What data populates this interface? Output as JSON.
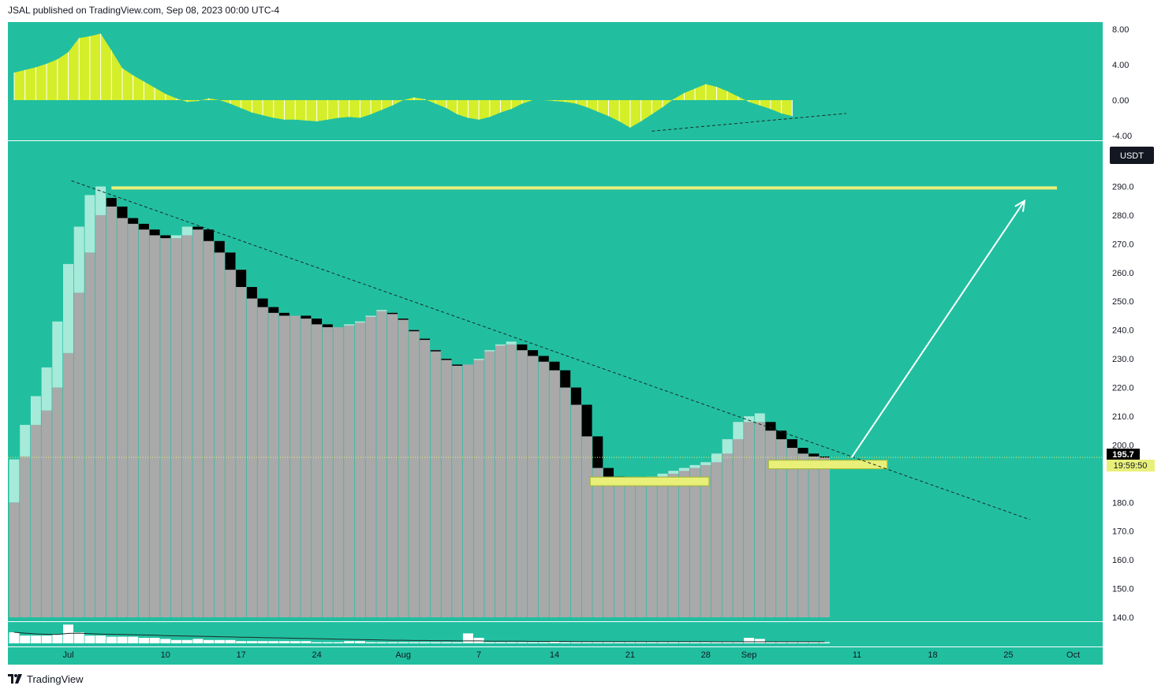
{
  "header": {
    "publisher_line": "JSAL published on TradingView.com, Sep 08, 2023 00:00 UTC-4"
  },
  "footer": {
    "brand": "TradingView",
    "logo_icon": "tradingview-logo-icon"
  },
  "colors": {
    "background": "#21bfa0",
    "bar_gray": "#a9a9a9",
    "bar_up_light": "#a6ead9",
    "bar_down_black": "#000000",
    "macd_fill": "#d4ee2a",
    "zone_fill": "#e9f07a",
    "line_white": "#ffffff",
    "dash": "#1d2a26"
  },
  "price_badge": {
    "value": "195.7",
    "countdown": "19:59:50"
  },
  "currency_label": "USDT",
  "chart_data": [
    {
      "type": "area",
      "panel": "macd",
      "yticks": [
        "8.00",
        "4.00",
        "0.00",
        "-4.00"
      ],
      "ytick_values": [
        8,
        4,
        0,
        -4
      ],
      "ylim": [
        -4.2,
        9.5
      ],
      "series": [
        {
          "values": [
            3.1,
            3.4,
            3.7,
            4.1,
            4.6,
            5.4,
            7.0,
            7.2,
            7.5,
            5.6,
            3.6,
            2.8,
            2.1,
            1.4,
            0.7,
            0.2,
            -0.2,
            -0.1,
            0.2,
            0.0,
            -0.4,
            -0.9,
            -1.4,
            -1.7,
            -2.0,
            -2.2,
            -2.2,
            -2.3,
            -2.4,
            -2.2,
            -2.0,
            -1.9,
            -2.0,
            -1.6,
            -1.1,
            -0.6,
            0.0,
            0.3,
            0.1,
            -0.4,
            -0.9,
            -1.6,
            -2.0,
            -2.2,
            -1.9,
            -1.4,
            -1.0,
            -0.4,
            0.0,
            0.0,
            -0.1,
            -0.2,
            -0.4,
            -0.8,
            -1.3,
            -1.8,
            -2.4,
            -3.1,
            -2.4,
            -1.6,
            -0.8,
            0.1,
            0.8,
            1.3,
            1.8,
            1.5,
            1.0,
            0.4,
            -0.2,
            -0.6,
            -1.0,
            -1.5,
            -1.8
          ]
        }
      ],
      "trendline": {
        "from": {
          "bar": 59,
          "value": -3.5
        },
        "to": {
          "bar": 77,
          "value": -1.5
        }
      }
    },
    {
      "type": "bar",
      "panel": "price",
      "x_ticks": [
        {
          "label": "Jul",
          "bar": 5
        },
        {
          "label": "10",
          "bar": 14
        },
        {
          "label": "17",
          "bar": 21
        },
        {
          "label": "24",
          "bar": 28
        },
        {
          "label": "Aug",
          "bar": 36
        },
        {
          "label": "7",
          "bar": 43
        },
        {
          "label": "14",
          "bar": 50
        },
        {
          "label": "21",
          "bar": 57
        },
        {
          "label": "28",
          "bar": 64
        },
        {
          "label": "Sep",
          "bar": 68
        },
        {
          "label": "11",
          "bar": 78
        },
        {
          "label": "18",
          "bar": 85
        },
        {
          "label": "25",
          "bar": 92
        },
        {
          "label": "Oct",
          "bar": 98
        }
      ],
      "yticks": [
        "290.0",
        "280.0",
        "270.0",
        "260.0",
        "250.0",
        "240.0",
        "230.0",
        "220.0",
        "210.0",
        "200.0",
        "180.0",
        "170.0",
        "160.0",
        "150.0",
        "140.0"
      ],
      "ytick_values": [
        290,
        280,
        270,
        260,
        250,
        240,
        230,
        220,
        210,
        200,
        180,
        170,
        160,
        150,
        140
      ],
      "ylim": [
        139,
        302
      ],
      "baseline": 140,
      "values": [
        180,
        196,
        207,
        212,
        220,
        232,
        253,
        267,
        280,
        286,
        283,
        279,
        277,
        275,
        273,
        272,
        273,
        276,
        275,
        271,
        267,
        261,
        255,
        251,
        248,
        246,
        245,
        245,
        244,
        242,
        241,
        242,
        243,
        245,
        247,
        246,
        244,
        240,
        237,
        233,
        230,
        228,
        228,
        230,
        233,
        235,
        235,
        233,
        231,
        229,
        226,
        220,
        214,
        203,
        192,
        189,
        187,
        186,
        187,
        189,
        190,
        191,
        192,
        193,
        194,
        197,
        202,
        208,
        210,
        208,
        205,
        202,
        199,
        197,
        196,
        195.7
      ],
      "marks": [
        {
          "bar": 0,
          "dir": "up",
          "other": 195
        },
        {
          "bar": 1,
          "dir": "up",
          "other": 207
        },
        {
          "bar": 2,
          "dir": "up",
          "other": 217
        },
        {
          "bar": 3,
          "dir": "up",
          "other": 227
        },
        {
          "bar": 4,
          "dir": "up",
          "other": 243
        },
        {
          "bar": 5,
          "dir": "up",
          "other": 263
        },
        {
          "bar": 6,
          "dir": "up",
          "other": 276
        },
        {
          "bar": 7,
          "dir": "up",
          "other": 287
        },
        {
          "bar": 8,
          "dir": "up",
          "other": 290
        },
        {
          "bar": 9,
          "dir": "down",
          "other": 283
        },
        {
          "bar": 10,
          "dir": "down",
          "other": 279
        },
        {
          "bar": 11,
          "dir": "down",
          "other": 277
        },
        {
          "bar": 12,
          "dir": "down",
          "other": 275
        },
        {
          "bar": 13,
          "dir": "down",
          "other": 273
        },
        {
          "bar": 14,
          "dir": "down",
          "other": 272
        },
        {
          "bar": 15,
          "dir": "up",
          "other": 273
        },
        {
          "bar": 16,
          "dir": "up",
          "other": 276
        },
        {
          "bar": 17,
          "dir": "down",
          "other": 275
        },
        {
          "bar": 18,
          "dir": "down",
          "other": 271
        },
        {
          "bar": 19,
          "dir": "down",
          "other": 267
        },
        {
          "bar": 20,
          "dir": "down",
          "other": 261
        },
        {
          "bar": 21,
          "dir": "down",
          "other": 255
        },
        {
          "bar": 22,
          "dir": "down",
          "other": 251
        },
        {
          "bar": 23,
          "dir": "down",
          "other": 248
        },
        {
          "bar": 24,
          "dir": "down",
          "other": 246
        },
        {
          "bar": 25,
          "dir": "down",
          "other": 245
        },
        {
          "bar": 27,
          "dir": "down",
          "other": 244
        },
        {
          "bar": 28,
          "dir": "down",
          "other": 242
        },
        {
          "bar": 29,
          "dir": "down",
          "other": 241
        },
        {
          "bar": 31,
          "dir": "up",
          "other": 242
        },
        {
          "bar": 32,
          "dir": "up",
          "other": 243
        },
        {
          "bar": 33,
          "dir": "up",
          "other": 245
        },
        {
          "bar": 34,
          "dir": "up",
          "other": 247
        },
        {
          "bar": 35,
          "dir": "down",
          "other": 246
        },
        {
          "bar": 36,
          "dir": "down",
          "other": 244
        },
        {
          "bar": 37,
          "dir": "down",
          "other": 240
        },
        {
          "bar": 38,
          "dir": "down",
          "other": 237
        },
        {
          "bar": 39,
          "dir": "down",
          "other": 233
        },
        {
          "bar": 40,
          "dir": "down",
          "other": 230
        },
        {
          "bar": 41,
          "dir": "down",
          "other": 228
        },
        {
          "bar": 43,
          "dir": "up",
          "other": 230
        },
        {
          "bar": 44,
          "dir": "up",
          "other": 233
        },
        {
          "bar": 45,
          "dir": "up",
          "other": 235
        },
        {
          "bar": 46,
          "dir": "up",
          "other": 236
        },
        {
          "bar": 47,
          "dir": "down",
          "other": 235
        },
        {
          "bar": 48,
          "dir": "down",
          "other": 233
        },
        {
          "bar": 49,
          "dir": "down",
          "other": 231
        },
        {
          "bar": 50,
          "dir": "down",
          "other": 229
        },
        {
          "bar": 51,
          "dir": "down",
          "other": 226
        },
        {
          "bar": 52,
          "dir": "down",
          "other": 220
        },
        {
          "bar": 53,
          "dir": "down",
          "other": 214
        },
        {
          "bar": 54,
          "dir": "down",
          "other": 203
        },
        {
          "bar": 55,
          "dir": "down",
          "other": 192
        },
        {
          "bar": 56,
          "dir": "down",
          "other": 189
        },
        {
          "bar": 57,
          "dir": "down",
          "other": 187
        },
        {
          "bar": 59,
          "dir": "up",
          "other": 187
        },
        {
          "bar": 60,
          "dir": "up",
          "other": 189
        },
        {
          "bar": 61,
          "dir": "up",
          "other": 190
        },
        {
          "bar": 62,
          "dir": "up",
          "other": 191
        },
        {
          "bar": 63,
          "dir": "up",
          "other": 192
        },
        {
          "bar": 64,
          "dir": "up",
          "other": 193
        },
        {
          "bar": 65,
          "dir": "up",
          "other": 194
        },
        {
          "bar": 66,
          "dir": "up",
          "other": 197
        },
        {
          "bar": 67,
          "dir": "up",
          "other": 202
        },
        {
          "bar": 68,
          "dir": "up",
          "other": 208
        },
        {
          "bar": 69,
          "dir": "up",
          "other": 211
        },
        {
          "bar": 70,
          "dir": "down",
          "other": 208
        },
        {
          "bar": 71,
          "dir": "down",
          "other": 205
        },
        {
          "bar": 72,
          "dir": "down",
          "other": 202
        },
        {
          "bar": 73,
          "dir": "down",
          "other": 199
        },
        {
          "bar": 74,
          "dir": "down",
          "other": 197
        },
        {
          "bar": 75,
          "dir": "down",
          "other": 196
        }
      ],
      "resistance_line": {
        "value": 289.5,
        "from_bar": 9,
        "to_bar": 96.5
      },
      "support_zones": [
        {
          "from_bar": 53.3,
          "to_bar": 64.3,
          "top": 188.8,
          "bottom": 185.8
        },
        {
          "from_bar": 69.8,
          "to_bar": 80.8,
          "top": 194.7,
          "bottom": 191.7
        }
      ],
      "trendline": {
        "from": {
          "bar": 5.3,
          "value": 292
        },
        "to": {
          "bar": 94,
          "value": 174
        }
      },
      "projection_arrow": {
        "from": {
          "bar": 77.5,
          "value": 195.7
        },
        "to": {
          "bar": 93.5,
          "value": 285
        }
      },
      "last_price_line": 195.7
    },
    {
      "type": "bar",
      "panel": "volume",
      "values": [
        0.5,
        0.35,
        0.35,
        0.35,
        0.4,
        0.85,
        0.5,
        0.35,
        0.35,
        0.3,
        0.3,
        0.3,
        0.25,
        0.25,
        0.2,
        0.15,
        0.15,
        0.2,
        0.15,
        0.15,
        0.15,
        0.1,
        0.1,
        0.1,
        0.1,
        0.1,
        0.1,
        0.1,
        0.05,
        0.05,
        0.05,
        0.1,
        0.1,
        0.05,
        0.05,
        0.05,
        0.05,
        0.05,
        0.05,
        0.05,
        0.05,
        0.05,
        0.45,
        0.25,
        0.05,
        0.05,
        0.05,
        0.05,
        0.05,
        0.05,
        0.1,
        0.05,
        0.05,
        0.05,
        0.05,
        0.05,
        0.05,
        0.05,
        0.05,
        0.05,
        0.05,
        0.05,
        0.05,
        0.05,
        0.05,
        0.05,
        0.05,
        0.05,
        0.25,
        0.2,
        0.05,
        0.05,
        0.05,
        0.05,
        0.05,
        0.05
      ],
      "sma_line": [
        0.5,
        0.46,
        0.43,
        0.41,
        0.4,
        0.45,
        0.46,
        0.44,
        0.42,
        0.41,
        0.4,
        0.39,
        0.38,
        0.37,
        0.35,
        0.34,
        0.33,
        0.32,
        0.31,
        0.3,
        0.29,
        0.28,
        0.27,
        0.26,
        0.25,
        0.24,
        0.23,
        0.22,
        0.21,
        0.2,
        0.19,
        0.18,
        0.17,
        0.16,
        0.15,
        0.14,
        0.14,
        0.13,
        0.13,
        0.12,
        0.12,
        0.11,
        0.11,
        0.11,
        0.1,
        0.1,
        0.1,
        0.1,
        0.09,
        0.09,
        0.09,
        0.09,
        0.08,
        0.08,
        0.08,
        0.08,
        0.08,
        0.08,
        0.08,
        0.08,
        0.08,
        0.08,
        0.08,
        0.08,
        0.08,
        0.07,
        0.07,
        0.07,
        0.07,
        0.07,
        0.07,
        0.07,
        0.07,
        0.07,
        0.07,
        0.07
      ]
    }
  ]
}
